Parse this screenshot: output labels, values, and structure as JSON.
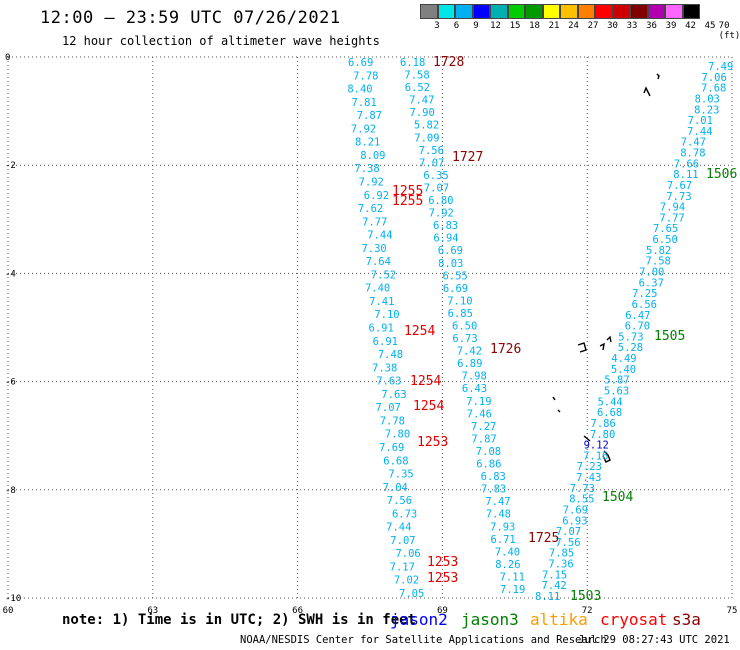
{
  "header": {
    "title": "12:00 – 23:59 UTC 07/26/2021",
    "subtitle": "12 hour collection of altimeter wave heights"
  },
  "legend": {
    "colors": [
      "#808080",
      "#00e5e5",
      "#00b0f0",
      "#0000ff",
      "#00b0b0",
      "#00cc00",
      "#009a00",
      "#ffff00",
      "#ffc000",
      "#ff8000",
      "#ff0000",
      "#cc0000",
      "#800000",
      "#b000b0",
      "#ff66ff",
      "#000000"
    ],
    "labels": [
      "3",
      "6",
      "9",
      "12",
      "15",
      "18",
      "21",
      "24",
      "27",
      "30",
      "33",
      "36",
      "39",
      "42",
      "45",
      "70 (ft)"
    ]
  },
  "map": {
    "lon_range": [
      60,
      75
    ],
    "lat_range": [
      -10,
      0
    ],
    "x_ticks": [
      "60",
      "63",
      "66",
      "69",
      "72",
      "75"
    ],
    "y_ticks": [
      "0",
      "-2",
      "-4",
      "-6",
      "-8",
      "-10"
    ],
    "swh_color": "#00b0f0",
    "highlight_color": "#0000cc",
    "tracks": [
      {
        "satellite": "cryosat",
        "color": "#ff0000",
        "values": [
          "6.69",
          "7.78",
          "8.40",
          "7.81",
          "7.87",
          "7.92",
          "8.21",
          "8.09",
          "7.38",
          "7.92",
          "6.92",
          "7.62",
          "7.77",
          "7.44",
          "7.30",
          "7.64",
          "7.52",
          "7.40",
          "7.41",
          "7.10",
          "6.91",
          "6.91",
          "7.48",
          "7.38",
          "7.63",
          "7.63",
          "7.07",
          "7.78",
          "7.80",
          "7.69",
          "6.68",
          "7.35",
          "7.04",
          "7.56",
          "6.73",
          "7.44",
          "7.07",
          "7.06",
          "7.17",
          "7.02",
          "7.05"
        ]
      },
      {
        "satellite": "s3a",
        "color": "#8b0000",
        "values": [
          "6.18",
          "7.58",
          "6.52",
          "7.47",
          "7.90",
          "5.82",
          "7.09",
          "7.56",
          "7.07",
          "6.35",
          "7.07",
          "6.80",
          "7.92",
          "6.83",
          "6.94",
          "6.69",
          "8.03",
          "6.55",
          "6.69",
          "7.10",
          "6.85",
          "6.50",
          "6.73",
          "7.42",
          "6.89",
          "7.98",
          "6.43",
          "7.19",
          "7.46",
          "7.27",
          "7.87",
          "7.08",
          "6.86",
          "6.83",
          "7.83",
          "7.47",
          "7.48",
          "7.93",
          "6.71",
          "7.40",
          "8.26",
          "7.11",
          "7.19"
        ]
      },
      {
        "satellite": "jason3",
        "color": "#008000",
        "values": [
          "7.49",
          "7.06",
          "7.68",
          "8.03",
          "8.23",
          "7.01",
          "7.44",
          "7.47",
          "8.78",
          "7.66",
          "8.11",
          "7.67",
          "7.73",
          "7.94",
          "7.77",
          "7.65",
          "6.50",
          "5.82",
          "7.58",
          "7.00",
          "6.37",
          "7.25",
          "6.56",
          "6.47",
          "6.70",
          "5.73",
          "5.28",
          "4.49",
          "5.40",
          "5.87",
          "5.63",
          "5.44",
          "6.68",
          "7.86",
          "7.80",
          "9.12",
          "7.16",
          "7.23",
          "7.43",
          "7.73",
          "8.55",
          "7.69",
          "6.93",
          "7.07",
          "7.56",
          "7.85",
          "7.36",
          "7.15",
          "7.42",
          "8.11"
        ]
      }
    ],
    "time_labels": [
      {
        "text": "1728",
        "color": "#8b0000"
      },
      {
        "text": "1727",
        "color": "#8b0000"
      },
      {
        "text": "1726",
        "color": "#8b0000"
      },
      {
        "text": "1725",
        "color": "#8b0000"
      },
      {
        "text": "1255",
        "color": "#e00000"
      },
      {
        "text": "1255",
        "color": "#e00000"
      },
      {
        "text": "1254",
        "color": "#e00000"
      },
      {
        "text": "1254",
        "color": "#e00000"
      },
      {
        "text": "1254",
        "color": "#e00000"
      },
      {
        "text": "1253",
        "color": "#e00000"
      },
      {
        "text": "1253",
        "color": "#e00000"
      },
      {
        "text": "1253",
        "color": "#e00000"
      },
      {
        "text": "1506",
        "color": "#008000"
      },
      {
        "text": "1505",
        "color": "#008000"
      },
      {
        "text": "1504",
        "color": "#008000"
      },
      {
        "text": "1503",
        "color": "#008000"
      }
    ]
  },
  "footer": {
    "note": "note: 1) Time is in UTC; 2) SWH is in feet",
    "satellites": [
      {
        "name": "jason2",
        "color": "#0000ff"
      },
      {
        "name": "jason3",
        "color": "#008000"
      },
      {
        "name": "altika",
        "color": "#ff9900"
      },
      {
        "name": "cryosat",
        "color": "#ff0000"
      },
      {
        "name": "s3a",
        "color": "#8b0000"
      }
    ],
    "credit": "NOAA/NESDIS Center for Satellite Applications and Research",
    "timestamp": "Jul 29 08:27:43 UTC 2021"
  }
}
